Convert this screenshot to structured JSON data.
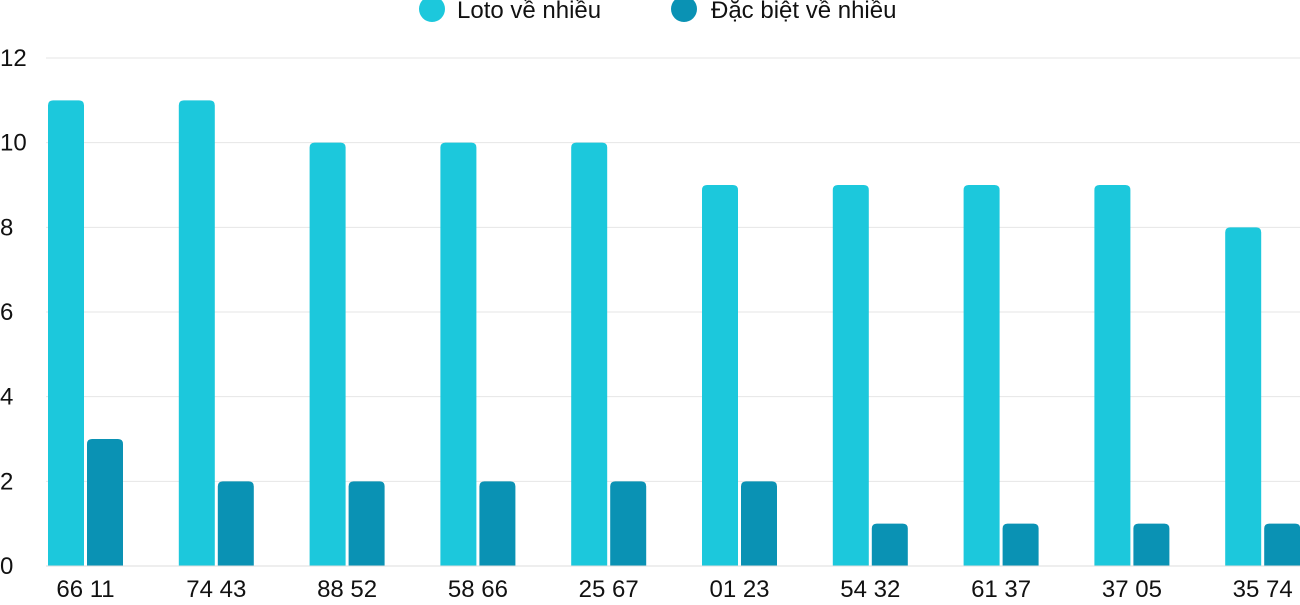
{
  "chart_data": {
    "type": "bar",
    "categories": [
      "66 11",
      "74 43",
      "88 52",
      "58 66",
      "25 67",
      "01 23",
      "54 32",
      "61 37",
      "37 05",
      "35 74"
    ],
    "series": [
      {
        "name": "Loto về nhiều",
        "color": "#1cc8dc",
        "values": [
          11,
          11,
          10,
          10,
          10,
          9,
          9,
          9,
          9,
          8
        ]
      },
      {
        "name": "Đặc biệt về nhiều",
        "color": "#0a92b4",
        "values": [
          3,
          2,
          2,
          2,
          2,
          2,
          1,
          1,
          1,
          1
        ]
      }
    ],
    "yticks": [
      0,
      2,
      4,
      6,
      8,
      10,
      12
    ],
    "ylim": [
      0,
      12
    ],
    "grid": true,
    "legend_position": "top-center"
  }
}
